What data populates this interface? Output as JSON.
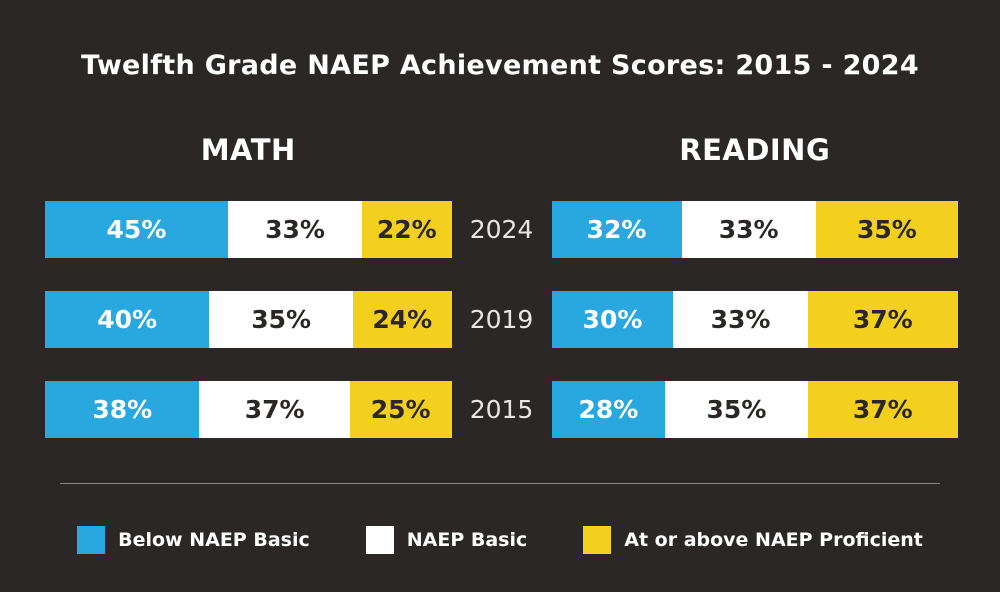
{
  "colors": {
    "background": "#2b2726",
    "blue": "#29a8e0",
    "white": "#ffffff",
    "yellow": "#f4d01e",
    "dark_text": "#2b2726",
    "year_label": "#e8e6e3",
    "divider": "#8a8683"
  },
  "legend": {
    "items": [
      {
        "label": "Below NAEP Basic",
        "color": "#29a8e0"
      },
      {
        "label": "NAEP Basic",
        "color": "#ffffff"
      },
      {
        "label": "At or above NAEP Proficient",
        "color": "#f4d01e"
      }
    ]
  },
  "chart_data": {
    "type": "bar",
    "subtype": "horizontal-stacked-percent",
    "title": "Twelfth Grade NAEP Achievement Scores: 2015 - 2024",
    "years": [
      "2024",
      "2019",
      "2015"
    ],
    "series_names": [
      "Below NAEP Basic",
      "NAEP Basic",
      "At or above NAEP Proficient"
    ],
    "legend_position": "bottom",
    "grid": false,
    "groups": [
      {
        "label": "MATH",
        "rows": [
          {
            "year": "2024",
            "segments": [
              {
                "name": "Below NAEP Basic",
                "value": 45,
                "display": "45%"
              },
              {
                "name": "NAEP Basic",
                "value": 33,
                "display": "33%"
              },
              {
                "name": "At or above NAEP Proficient",
                "value": 22,
                "display": "22%"
              }
            ]
          },
          {
            "year": "2019",
            "segments": [
              {
                "name": "Below NAEP Basic",
                "value": 40,
                "display": "40%"
              },
              {
                "name": "NAEP Basic",
                "value": 35,
                "display": "35%"
              },
              {
                "name": "At or above NAEP Proficient",
                "value": 24,
                "display": "24%"
              }
            ]
          },
          {
            "year": "2015",
            "segments": [
              {
                "name": "Below NAEP Basic",
                "value": 38,
                "display": "38%"
              },
              {
                "name": "NAEP Basic",
                "value": 37,
                "display": "37%"
              },
              {
                "name": "At or above NAEP Proficient",
                "value": 25,
                "display": "25%"
              }
            ]
          }
        ]
      },
      {
        "label": "READING",
        "rows": [
          {
            "year": "2024",
            "segments": [
              {
                "name": "Below NAEP Basic",
                "value": 32,
                "display": "32%"
              },
              {
                "name": "NAEP Basic",
                "value": 33,
                "display": "33%"
              },
              {
                "name": "At or above NAEP Proficient",
                "value": 35,
                "display": "35%"
              }
            ]
          },
          {
            "year": "2019",
            "segments": [
              {
                "name": "Below NAEP Basic",
                "value": 30,
                "display": "30%"
              },
              {
                "name": "NAEP Basic",
                "value": 33,
                "display": "33%"
              },
              {
                "name": "At or above NAEP Proficient",
                "value": 37,
                "display": "37%"
              }
            ]
          },
          {
            "year": "2015",
            "segments": [
              {
                "name": "Below NAEP Basic",
                "value": 28,
                "display": "28%"
              },
              {
                "name": "NAEP Basic",
                "value": 35,
                "display": "35%"
              },
              {
                "name": "At or above NAEP Proficient",
                "value": 37,
                "display": "37%"
              }
            ]
          }
        ]
      }
    ]
  }
}
